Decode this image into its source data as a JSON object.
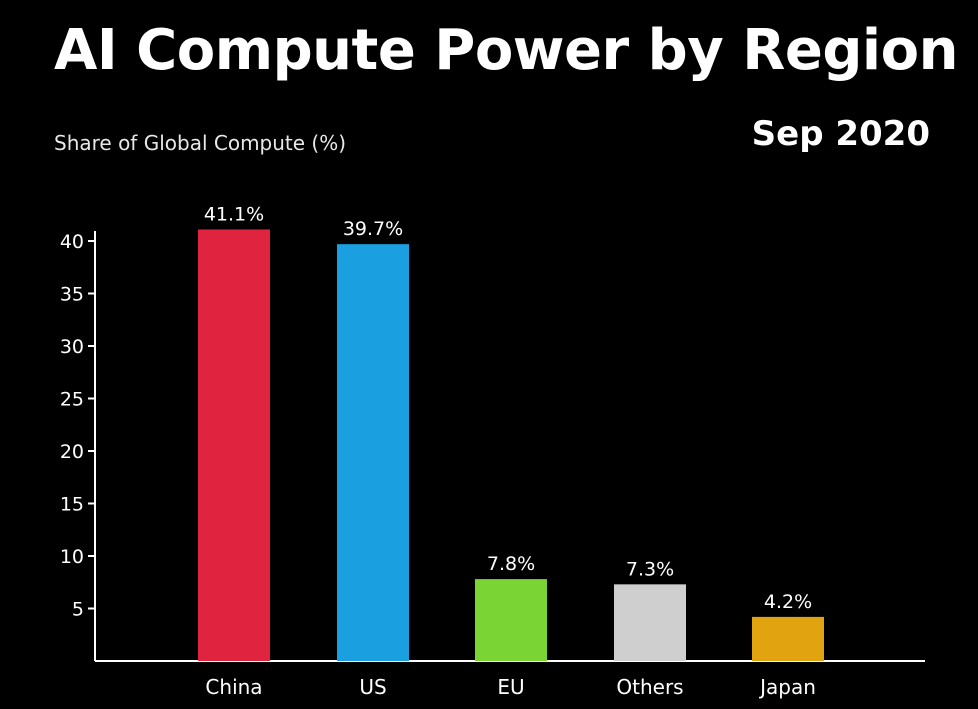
{
  "title": "AI Compute Power by Region",
  "ylabel": "Share of Global Compute (%)",
  "date": "Sep 2020",
  "colors": {
    "China": "#e0233f",
    "US": "#1a9fe0",
    "EU": "#7ad433",
    "Others": "#cfcfcf",
    "Japan": "#e1a410",
    "axis": "#ffffff"
  },
  "chart_data": {
    "type": "bar",
    "title": "AI Compute Power by Region",
    "ylabel": "Share of Global Compute (%)",
    "xlabel": "",
    "categories": [
      "China",
      "US",
      "EU",
      "Others",
      "Japan"
    ],
    "values": [
      41.1,
      39.7,
      7.8,
      7.3,
      4.2
    ],
    "value_labels": [
      "41.1%",
      "39.7%",
      "7.8%",
      "7.3%",
      "4.2%"
    ],
    "yticks": [
      5,
      10,
      15,
      20,
      25,
      30,
      35,
      40
    ],
    "ylim": [
      0,
      40
    ],
    "grid": false,
    "legend": "none"
  }
}
